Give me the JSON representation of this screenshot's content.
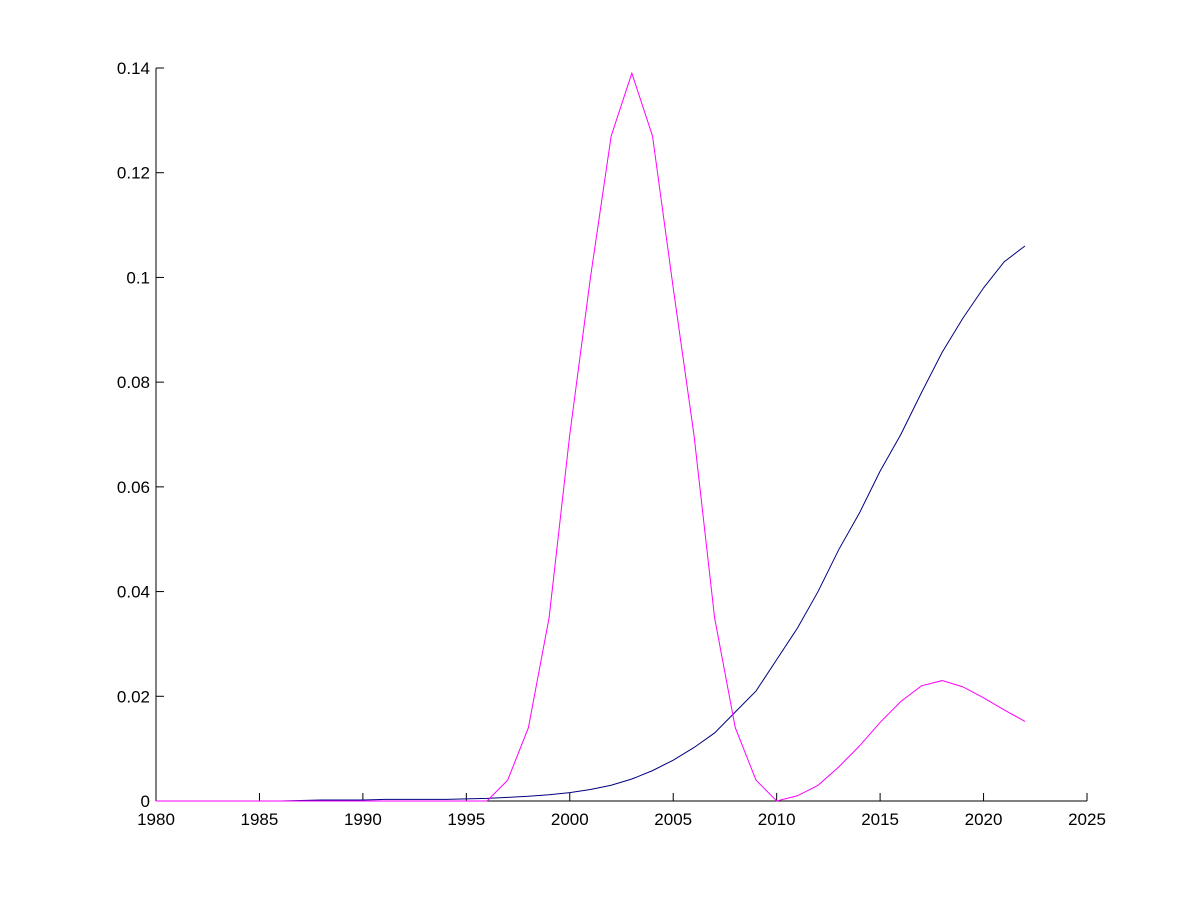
{
  "chart_data": {
    "type": "line",
    "x": [
      1980,
      1981,
      1982,
      1983,
      1984,
      1985,
      1986,
      1987,
      1988,
      1989,
      1990,
      1991,
      1992,
      1993,
      1994,
      1995,
      1996,
      1997,
      1998,
      1999,
      2000,
      2001,
      2002,
      2003,
      2004,
      2005,
      2006,
      2007,
      2008,
      2009,
      2010,
      2011,
      2012,
      2013,
      2014,
      2015,
      2016,
      2017,
      2018,
      2019,
      2020,
      2021,
      2022
    ],
    "series": [
      {
        "color": "#000080",
        "values": [
          0,
          0,
          0,
          0,
          0,
          0,
          0,
          0.0001,
          0.0002,
          0.0002,
          0.0002,
          0.0003,
          0.0003,
          0.0003,
          0.0003,
          0.0004,
          0.0005,
          0.0007,
          0.0009,
          0.0012,
          0.0016,
          0.0022,
          0.003,
          0.0042,
          0.0058,
          0.0078,
          0.0102,
          0.013,
          0.017,
          0.021,
          0.027,
          0.033,
          0.04,
          0.048,
          0.055,
          0.063,
          0.07,
          0.078,
          0.0857,
          0.0922,
          0.098,
          0.103,
          0.106
        ]
      },
      {
        "color": "#ff00ff",
        "values": [
          0,
          0,
          0,
          0,
          0,
          0,
          0,
          0,
          0,
          0,
          0,
          0,
          0,
          0,
          0,
          0,
          0,
          0.004,
          0.014,
          0.035,
          0.07,
          0.1,
          0.127,
          0.139,
          0.127,
          0.098,
          0.07,
          0.035,
          0.014,
          0.004,
          0,
          0.001,
          0.003,
          0.0065,
          0.0105,
          0.015,
          0.019,
          0.022,
          0.023,
          0.0218,
          0.0197,
          0.0174,
          0.0152
        ]
      }
    ],
    "xlim": [
      1980,
      2025
    ],
    "xticks": [
      1980,
      1985,
      1990,
      1995,
      2000,
      2005,
      2010,
      2015,
      2020,
      2025
    ],
    "ylim": [
      0,
      0.14
    ],
    "yticks": [
      0,
      0.02,
      0.04,
      0.06,
      0.08,
      0.1,
      0.12,
      0.14
    ]
  }
}
